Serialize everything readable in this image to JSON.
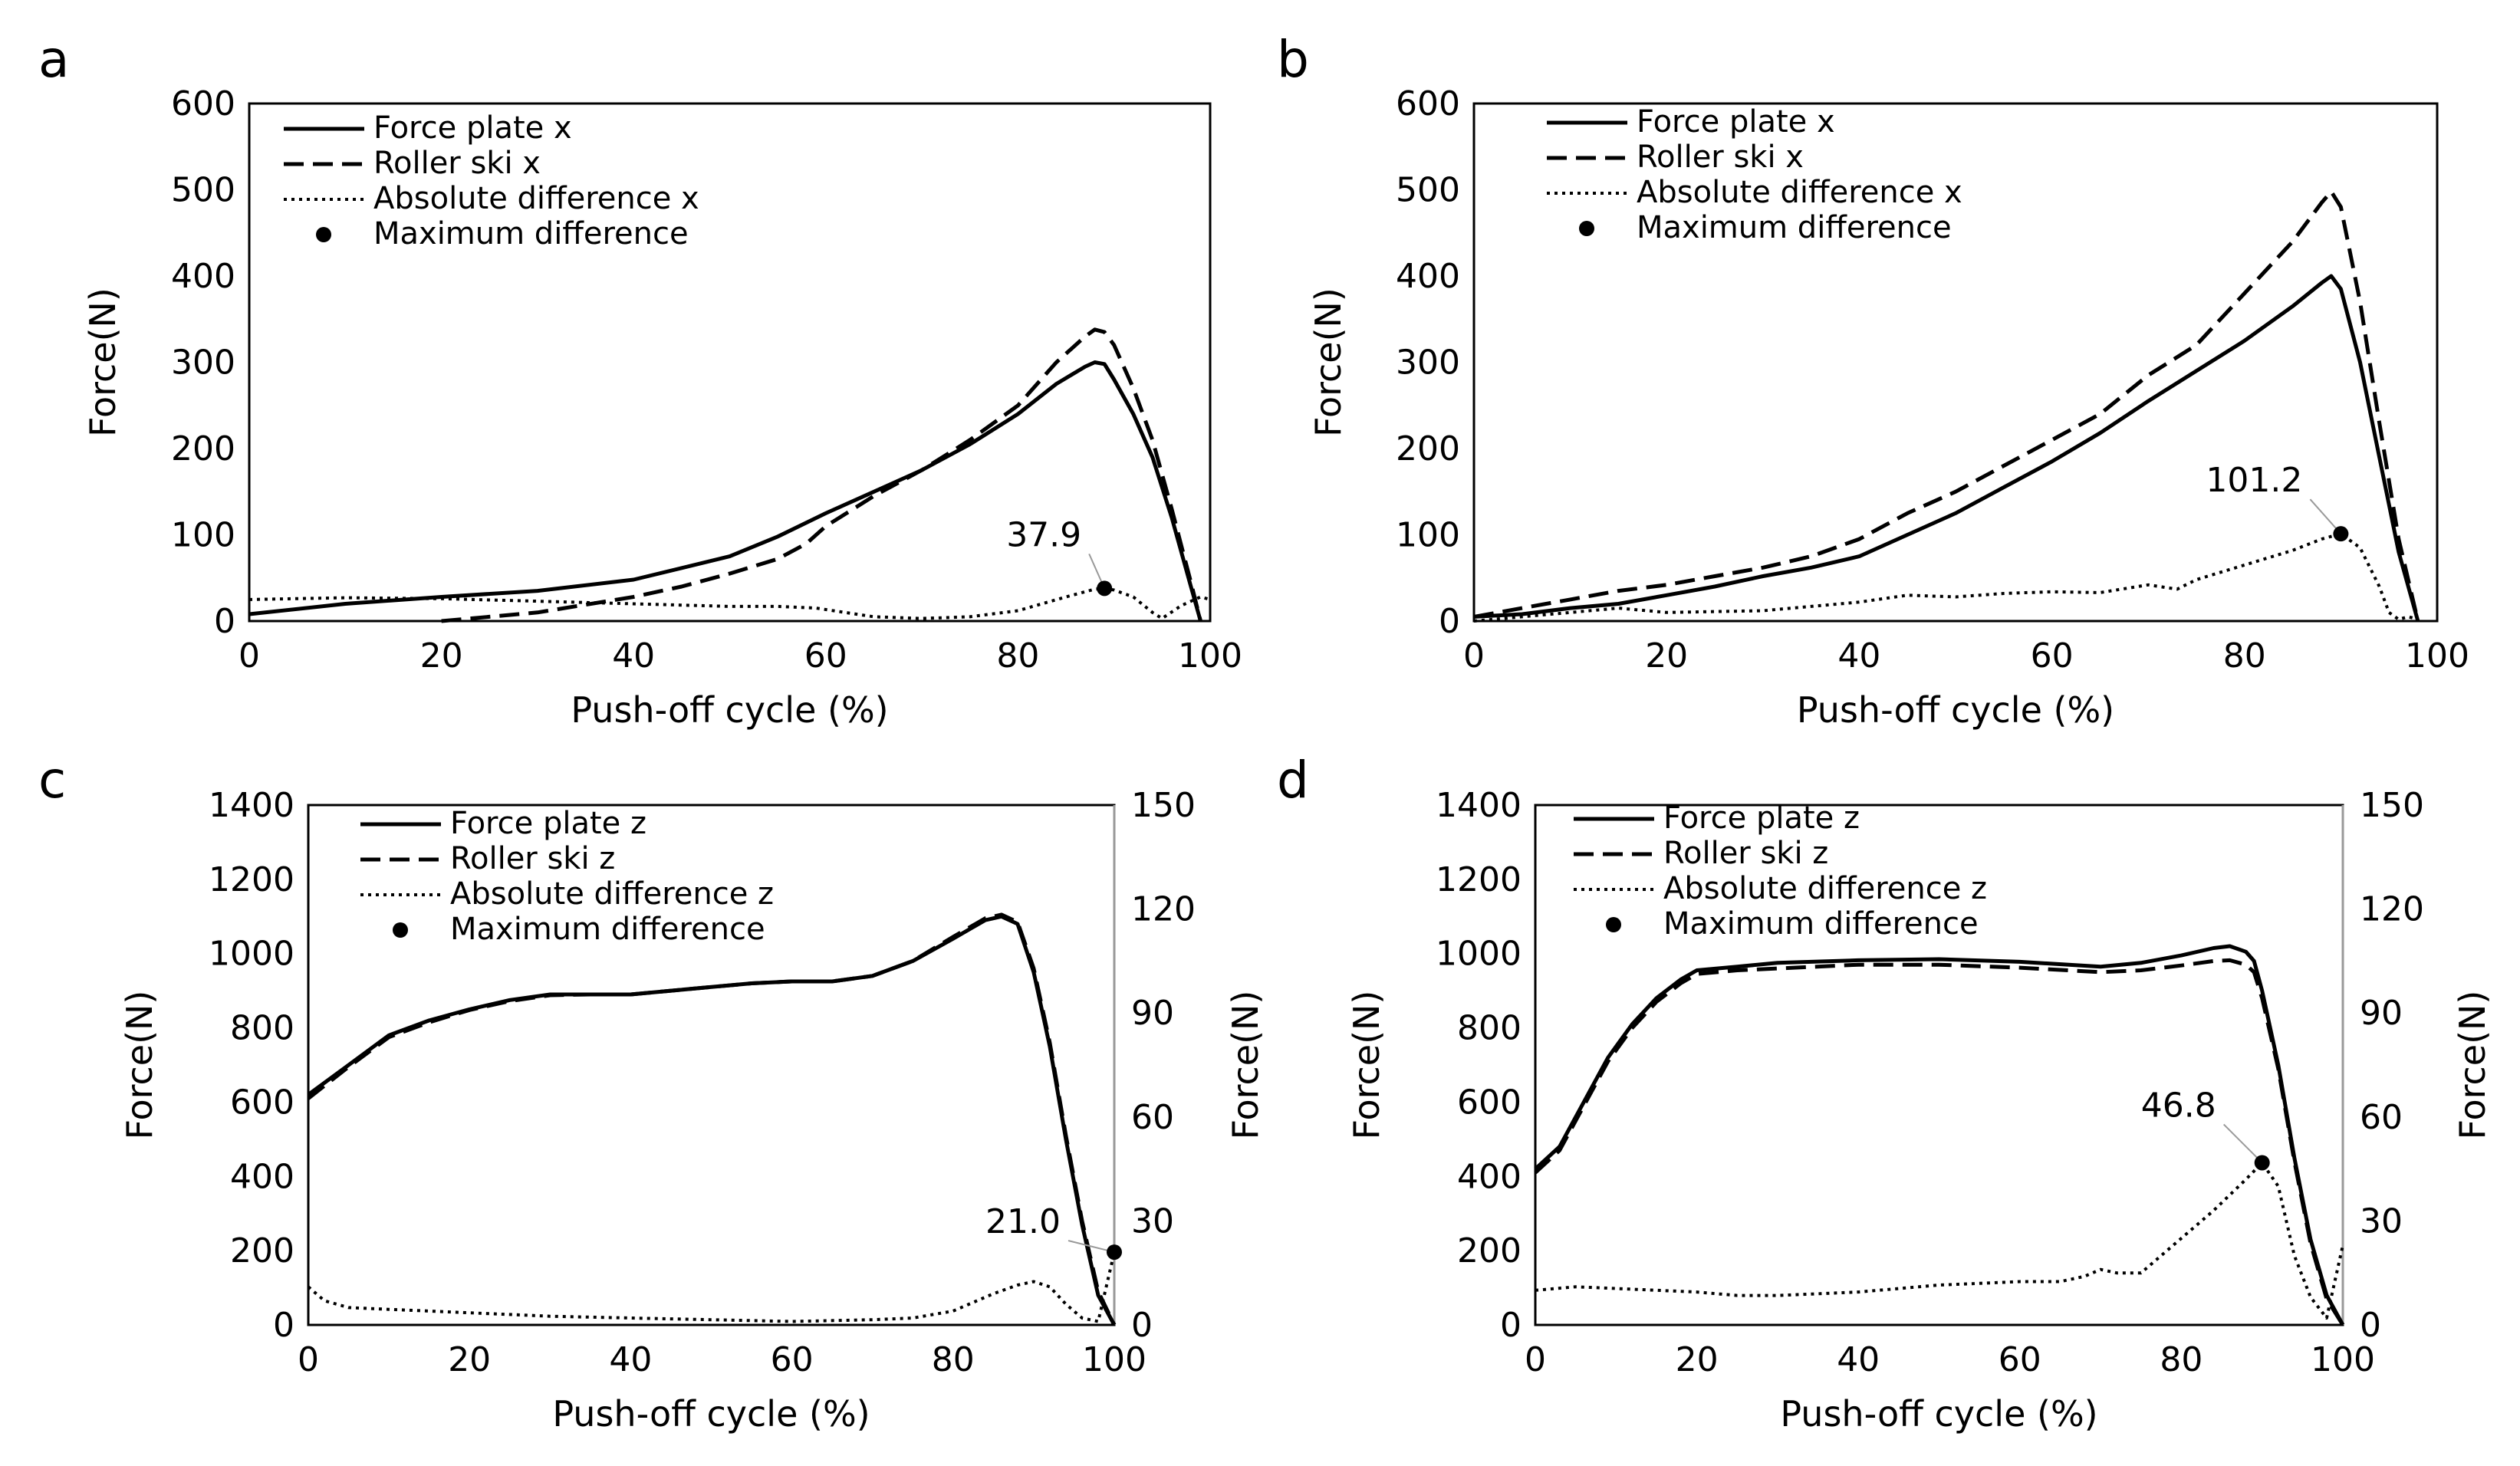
{
  "chart_data": [
    {
      "type": "line",
      "panel": "a",
      "xlabel": "Push-off cycle (%)",
      "ylabel": "Force(N)",
      "xlim": [
        0,
        100
      ],
      "ylim": [
        0,
        600
      ],
      "xticks": [
        0,
        20,
        40,
        60,
        80,
        100
      ],
      "yticks": [
        0,
        100,
        200,
        300,
        400,
        500,
        600
      ],
      "legend": [
        "Force plate x",
        "Roller ski x",
        "Absolute difference x",
        "Maximum difference"
      ],
      "series": [
        {
          "name": "Force plate x",
          "style": "solid",
          "x": [
            0,
            10,
            20,
            30,
            40,
            50,
            55,
            60,
            65,
            70,
            75,
            80,
            84,
            87,
            88,
            89,
            90,
            92,
            94,
            96,
            98,
            99
          ],
          "y": [
            8,
            20,
            28,
            35,
            48,
            75,
            98,
            125,
            150,
            175,
            205,
            240,
            275,
            295,
            300,
            298,
            280,
            240,
            190,
            120,
            40,
            0
          ]
        },
        {
          "name": "Roller ski x",
          "style": "dashed",
          "x": [
            20,
            30,
            40,
            45,
            50,
            55,
            58,
            60,
            65,
            70,
            75,
            80,
            84,
            87,
            88,
            89,
            90,
            92,
            94,
            96,
            98,
            99
          ],
          "y": [
            0,
            10,
            28,
            40,
            55,
            72,
            90,
            110,
            145,
            175,
            210,
            250,
            300,
            330,
            338,
            335,
            320,
            270,
            210,
            130,
            45,
            0
          ]
        },
        {
          "name": "Absolute difference x",
          "style": "dotted",
          "x": [
            0,
            10,
            20,
            30,
            40,
            50,
            55,
            59,
            62,
            65,
            70,
            75,
            80,
            85,
            88,
            89,
            90,
            92,
            94,
            95,
            97,
            99,
            100
          ],
          "y": [
            25,
            27,
            26,
            23,
            20,
            17,
            17,
            15,
            10,
            5,
            3,
            5,
            12,
            28,
            37,
            37.9,
            36,
            28,
            10,
            3,
            18,
            28,
            25
          ]
        }
      ],
      "max_difference": {
        "x": 89,
        "y": 37.9,
        "label": "37.9"
      }
    },
    {
      "type": "line",
      "panel": "b",
      "xlabel": "Push-off cycle (%)",
      "ylabel": "Force(N)",
      "xlim": [
        0,
        100
      ],
      "ylim": [
        0,
        600
      ],
      "xticks": [
        0,
        20,
        40,
        60,
        80,
        100
      ],
      "yticks": [
        0,
        100,
        200,
        300,
        400,
        500,
        600
      ],
      "legend": [
        "Force plate x",
        "Roller ski x",
        "Absolute difference x",
        "Maximum difference"
      ],
      "series": [
        {
          "name": "Force plate x",
          "style": "solid",
          "x": [
            0,
            5,
            10,
            15,
            20,
            25,
            30,
            35,
            40,
            45,
            50,
            55,
            60,
            65,
            70,
            75,
            80,
            85,
            88,
            89,
            90,
            92,
            94,
            96,
            98
          ],
          "y": [
            5,
            8,
            15,
            20,
            30,
            40,
            52,
            62,
            75,
            100,
            125,
            155,
            185,
            218,
            255,
            290,
            325,
            365,
            392,
            400,
            385,
            300,
            190,
            80,
            0
          ]
        },
        {
          "name": "Roller ski x",
          "style": "dashed",
          "x": [
            0,
            5,
            10,
            15,
            20,
            25,
            30,
            35,
            40,
            45,
            50,
            55,
            60,
            65,
            70,
            75,
            80,
            85,
            88,
            89,
            90,
            92,
            94,
            96,
            98
          ],
          "y": [
            5,
            15,
            25,
            35,
            42,
            52,
            62,
            75,
            95,
            125,
            150,
            180,
            210,
            240,
            285,
            320,
            380,
            440,
            485,
            498,
            480,
            370,
            230,
            95,
            0
          ]
        },
        {
          "name": "Absolute difference x",
          "style": "dotted",
          "x": [
            0,
            5,
            10,
            15,
            20,
            30,
            35,
            40,
            45,
            50,
            55,
            60,
            65,
            70,
            73,
            75,
            80,
            85,
            88,
            90,
            92,
            94,
            95,
            96,
            97,
            98
          ],
          "y": [
            0,
            5,
            10,
            15,
            10,
            12,
            17,
            22,
            30,
            28,
            32,
            34,
            33,
            42,
            37,
            48,
            65,
            82,
            95,
            101.2,
            85,
            40,
            10,
            2,
            5,
            2
          ]
        }
      ],
      "max_difference": {
        "x": 90,
        "y": 101.2,
        "label": "101.2"
      }
    },
    {
      "type": "line",
      "panel": "c",
      "xlabel": "Push-off cycle (%)",
      "ylabel": "Force(N)",
      "ylabel_right": "Force(N)",
      "xlim": [
        0,
        100
      ],
      "ylim": [
        0,
        1400
      ],
      "ylim_right": [
        0,
        150
      ],
      "xticks": [
        0,
        20,
        40,
        60,
        80,
        100
      ],
      "yticks": [
        0,
        200,
        400,
        600,
        800,
        1000,
        1200,
        1400
      ],
      "yticks_right": [
        0,
        30,
        60,
        90,
        120,
        150
      ],
      "legend": [
        "Force plate z",
        "Roller ski z",
        "Absolute difference z",
        "Maximum difference"
      ],
      "series": [
        {
          "name": "Force plate z",
          "style": "solid",
          "axis": "left",
          "x": [
            0,
            5,
            10,
            15,
            20,
            25,
            30,
            35,
            40,
            45,
            50,
            55,
            60,
            65,
            70,
            75,
            80,
            84,
            86,
            88,
            90,
            92,
            94,
            96,
            98,
            100
          ],
          "y": [
            620,
            700,
            780,
            820,
            850,
            875,
            890,
            890,
            890,
            900,
            910,
            920,
            925,
            925,
            940,
            980,
            1040,
            1090,
            1100,
            1080,
            950,
            750,
            500,
            270,
            80,
            0
          ]
        },
        {
          "name": "Roller ski z",
          "style": "dashed",
          "axis": "left",
          "x": [
            0,
            5,
            10,
            15,
            20,
            25,
            30,
            35,
            40,
            45,
            50,
            55,
            60,
            65,
            70,
            75,
            80,
            84,
            86,
            88,
            90,
            92,
            94,
            96,
            98,
            100
          ],
          "y": [
            610,
            695,
            775,
            815,
            848,
            872,
            888,
            890,
            890,
            900,
            910,
            920,
            925,
            925,
            940,
            980,
            1045,
            1095,
            1105,
            1085,
            960,
            760,
            510,
            280,
            90,
            0
          ]
        },
        {
          "name": "Absolute difference z",
          "style": "dotted",
          "axis": "right",
          "x": [
            0,
            2,
            5,
            10,
            15,
            20,
            25,
            30,
            40,
            50,
            60,
            70,
            75,
            80,
            85,
            88,
            90,
            92,
            94,
            96,
            98,
            100
          ],
          "y": [
            11,
            7,
            5,
            4.5,
            4,
            3.5,
            3,
            2.5,
            2,
            1.5,
            1,
            1.5,
            2,
            4,
            9,
            11.5,
            12.5,
            11,
            6,
            2,
            1,
            21.0
          ]
        }
      ],
      "max_difference": {
        "x": 100,
        "y": 21.0,
        "label": "21.0",
        "axis": "right"
      }
    },
    {
      "type": "line",
      "panel": "d",
      "xlabel": "Push-off cycle (%)",
      "ylabel": "Force(N)",
      "ylabel_right": "Force(N)",
      "xlim": [
        0,
        100
      ],
      "ylim": [
        0,
        1400
      ],
      "ylim_right": [
        0,
        150
      ],
      "xticks": [
        0,
        20,
        40,
        60,
        80,
        100
      ],
      "yticks": [
        0,
        200,
        400,
        600,
        800,
        1000,
        1200,
        1400
      ],
      "yticks_right": [
        0,
        30,
        60,
        90,
        120,
        150
      ],
      "legend": [
        "Force plate z",
        "Roller ski z",
        "Absolute difference z",
        "Maximum difference"
      ],
      "series": [
        {
          "name": "Force plate z",
          "style": "solid",
          "axis": "left",
          "x": [
            0,
            3,
            6,
            9,
            12,
            15,
            18,
            20,
            25,
            30,
            40,
            50,
            60,
            70,
            75,
            80,
            84,
            86,
            88,
            89,
            90,
            92,
            94,
            96,
            98,
            100
          ],
          "y": [
            420,
            480,
            600,
            720,
            810,
            880,
            930,
            955,
            965,
            975,
            982,
            985,
            978,
            965,
            975,
            995,
            1015,
            1020,
            1005,
            980,
            900,
            700,
            450,
            230,
            80,
            0
          ]
        },
        {
          "name": "Roller ski z",
          "style": "dashed",
          "axis": "left",
          "x": [
            0,
            3,
            6,
            9,
            12,
            15,
            18,
            20,
            25,
            30,
            40,
            50,
            60,
            70,
            75,
            80,
            84,
            86,
            88,
            89,
            90,
            92,
            94,
            96,
            98,
            100
          ],
          "y": [
            410,
            470,
            590,
            710,
            800,
            870,
            920,
            945,
            955,
            960,
            970,
            970,
            962,
            950,
            955,
            968,
            980,
            982,
            970,
            950,
            880,
            690,
            440,
            220,
            70,
            0
          ]
        },
        {
          "name": "Absolute difference z",
          "style": "dotted",
          "axis": "right",
          "x": [
            0,
            5,
            10,
            15,
            20,
            25,
            30,
            40,
            50,
            55,
            60,
            65,
            68,
            70,
            72,
            75,
            78,
            80,
            84,
            88,
            90,
            92,
            94,
            96,
            98,
            100
          ],
          "y": [
            10,
            11,
            10.5,
            10,
            9.5,
            8.5,
            8.5,
            9.5,
            11.5,
            12,
            12.5,
            12.5,
            14,
            16,
            15,
            15,
            21,
            25,
            33,
            42,
            46.8,
            40,
            20,
            8,
            2,
            23
          ]
        }
      ],
      "max_difference": {
        "x": 90,
        "y": 46.8,
        "label": "46.8",
        "axis": "right"
      }
    }
  ]
}
